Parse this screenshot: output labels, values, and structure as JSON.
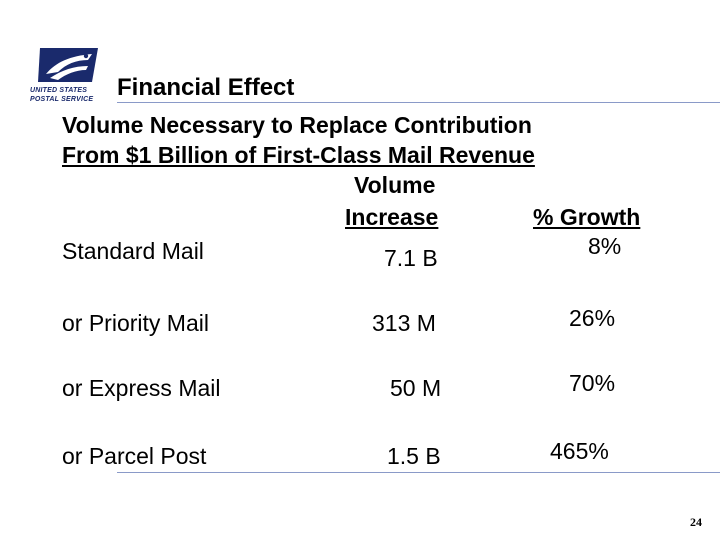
{
  "logo": {
    "line1": "UNITED STATES",
    "line2": "POSTAL SERVICE",
    "color": "#1a2a6c"
  },
  "title": "Financial Effect",
  "subtitle": {
    "line1": "Volume Necessary to Replace Contribution",
    "line2": "From $1 Billion of First-Class Mail Revenue"
  },
  "columns": {
    "volume_line1": "Volume",
    "volume_line2": "Increase",
    "growth": "% Growth"
  },
  "rows": [
    {
      "name": "Standard Mail",
      "volume": "7.1 B",
      "growth": "8%"
    },
    {
      "name": "or Priority Mail",
      "volume": "313 M",
      "growth": "26%"
    },
    {
      "name": "or Express Mail",
      "volume": "50 M",
      "growth": "70%"
    },
    {
      "name": "or Parcel Post",
      "volume": "1.5 B",
      "growth": "465%"
    }
  ],
  "page_number": "24",
  "rule_color": "#8a9ac8"
}
